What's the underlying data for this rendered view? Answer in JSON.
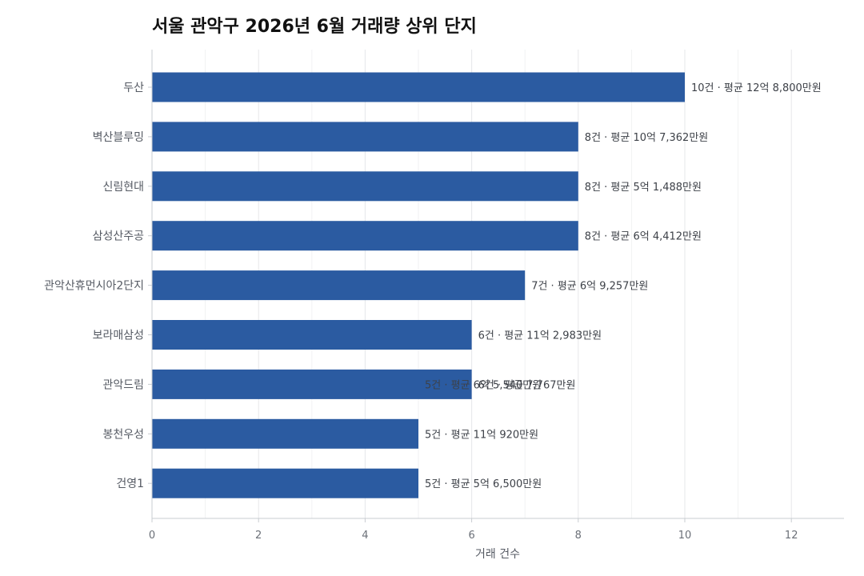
{
  "chart_data": {
    "type": "bar",
    "orientation": "horizontal",
    "title": "서울 관악구 2026년 6월 거래량 상위 단지",
    "xlabel": "거래 건수",
    "ylabel": "",
    "xlim": [
      0,
      13
    ],
    "xticks": [
      0,
      2,
      4,
      6,
      8,
      10,
      12
    ],
    "grid": true,
    "bar_color": "#2b5ba1",
    "categories": [
      "두산",
      "벽산블루밍",
      "신림현대",
      "삼성산주공",
      "관악산휴먼시아2단지",
      "보라매삼성",
      "관악드림",
      "봉천우성",
      "건영1"
    ],
    "values": [
      10,
      8,
      8,
      8,
      7,
      6,
      6,
      5,
      5
    ],
    "data_labels": [
      "10건 · 평균 12억 8,800만원",
      "8건 · 평균 10억 7,362만원",
      "8건 · 평균 5억 1,488만원",
      "8건 · 평균 6억 4,412만원",
      "7건 · 평균 6억 9,257만원",
      "6건 · 평균 11억 2,983만원",
      "6건 · 평균 7,767만원",
      "5건 · 평균 11억 920만원",
      "5건 · 평균 5억 6,500만원"
    ],
    "extra_labels": [
      {
        "category": "관악드림",
        "value": 5,
        "text": "5건 · 평균 6억 5,540만원"
      }
    ]
  }
}
